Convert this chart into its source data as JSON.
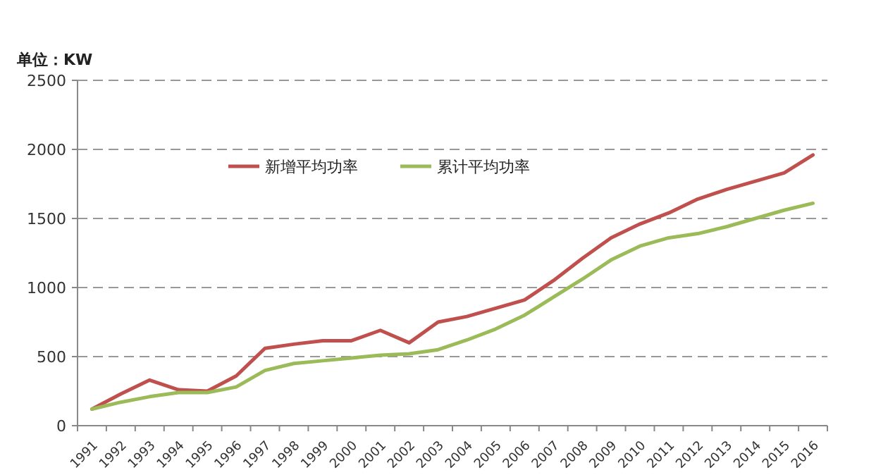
{
  "chart_data": {
    "type": "line",
    "ylabel": "单位：KW",
    "categories": [
      "1991",
      "1992",
      "1993",
      "1994",
      "1995",
      "1996",
      "1997",
      "1998",
      "1999",
      "2000",
      "2001",
      "2002",
      "2003",
      "2004",
      "2005",
      "2006",
      "2007",
      "2008",
      "2009",
      "2010",
      "2011",
      "2012",
      "2013",
      "2014",
      "2015",
      "2016"
    ],
    "series": [
      {
        "name": "新增平均功率",
        "color": "#c0504d",
        "values": [
          120,
          230,
          330,
          260,
          250,
          360,
          560,
          590,
          615,
          615,
          690,
          600,
          750,
          790,
          850,
          910,
          1050,
          1210,
          1360,
          1460,
          1540,
          1640,
          1710,
          1770,
          1830,
          1960
        ]
      },
      {
        "name": "累计平均功率",
        "color": "#9bbb59",
        "values": [
          120,
          170,
          210,
          240,
          240,
          280,
          400,
          450,
          470,
          490,
          510,
          520,
          550,
          620,
          700,
          800,
          930,
          1060,
          1200,
          1300,
          1360,
          1390,
          1440,
          1500,
          1560,
          1610
        ]
      }
    ],
    "ylim": [
      0,
      2500
    ],
    "yticks": [
      0,
      500,
      1000,
      1500,
      2000,
      2500
    ],
    "grid": "y",
    "legend": "top",
    "marker": "none",
    "line_style": "solid"
  }
}
